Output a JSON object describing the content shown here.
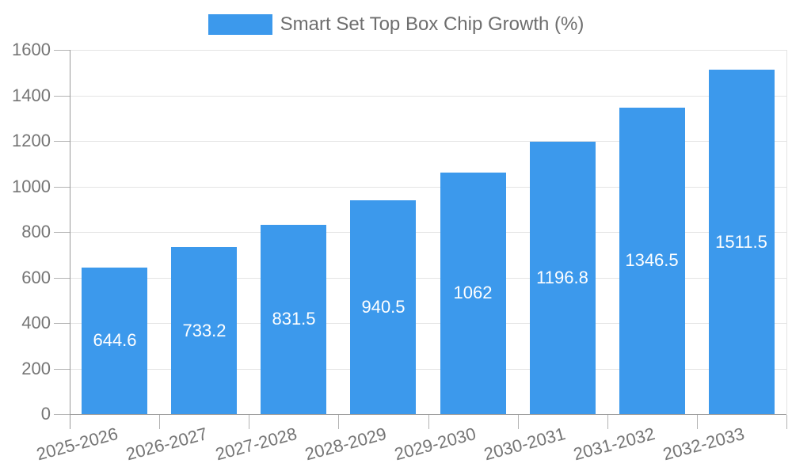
{
  "legend": {
    "label": "Smart Set Top Box Chip Growth (%)"
  },
  "colors": {
    "bar": "#3C99EC",
    "axis_text": "#757575",
    "legend_text": "#6E6E6E",
    "bar_label_text": "#FFFFFF",
    "gridline": "#E4E4E4",
    "axis_line": "#999999",
    "tick": "#B3B3B3",
    "background": "#FFFFFF"
  },
  "chart_data": {
    "type": "bar",
    "title": "Smart Set Top Box Chip Growth (%)",
    "categories": [
      "2025-2026",
      "2026-2027",
      "2027-2028",
      "2028-2029",
      "2029-2030",
      "2030-2031",
      "2031-2032",
      "2032-2033"
    ],
    "values": [
      644.6,
      733.2,
      831.5,
      940.5,
      1062,
      1196.8,
      1346.5,
      1511.5
    ],
    "series_name": "Smart Set Top Box Chip Growth (%)",
    "xlabel": "",
    "ylabel": "",
    "ylim": [
      0,
      1600
    ],
    "yticks": [
      0,
      200,
      400,
      600,
      800,
      1000,
      1200,
      1400,
      1600
    ],
    "grid": true,
    "legend_position": "top-center",
    "bar_value_labels": "inside-center",
    "x_label_rotation_deg": -15
  }
}
